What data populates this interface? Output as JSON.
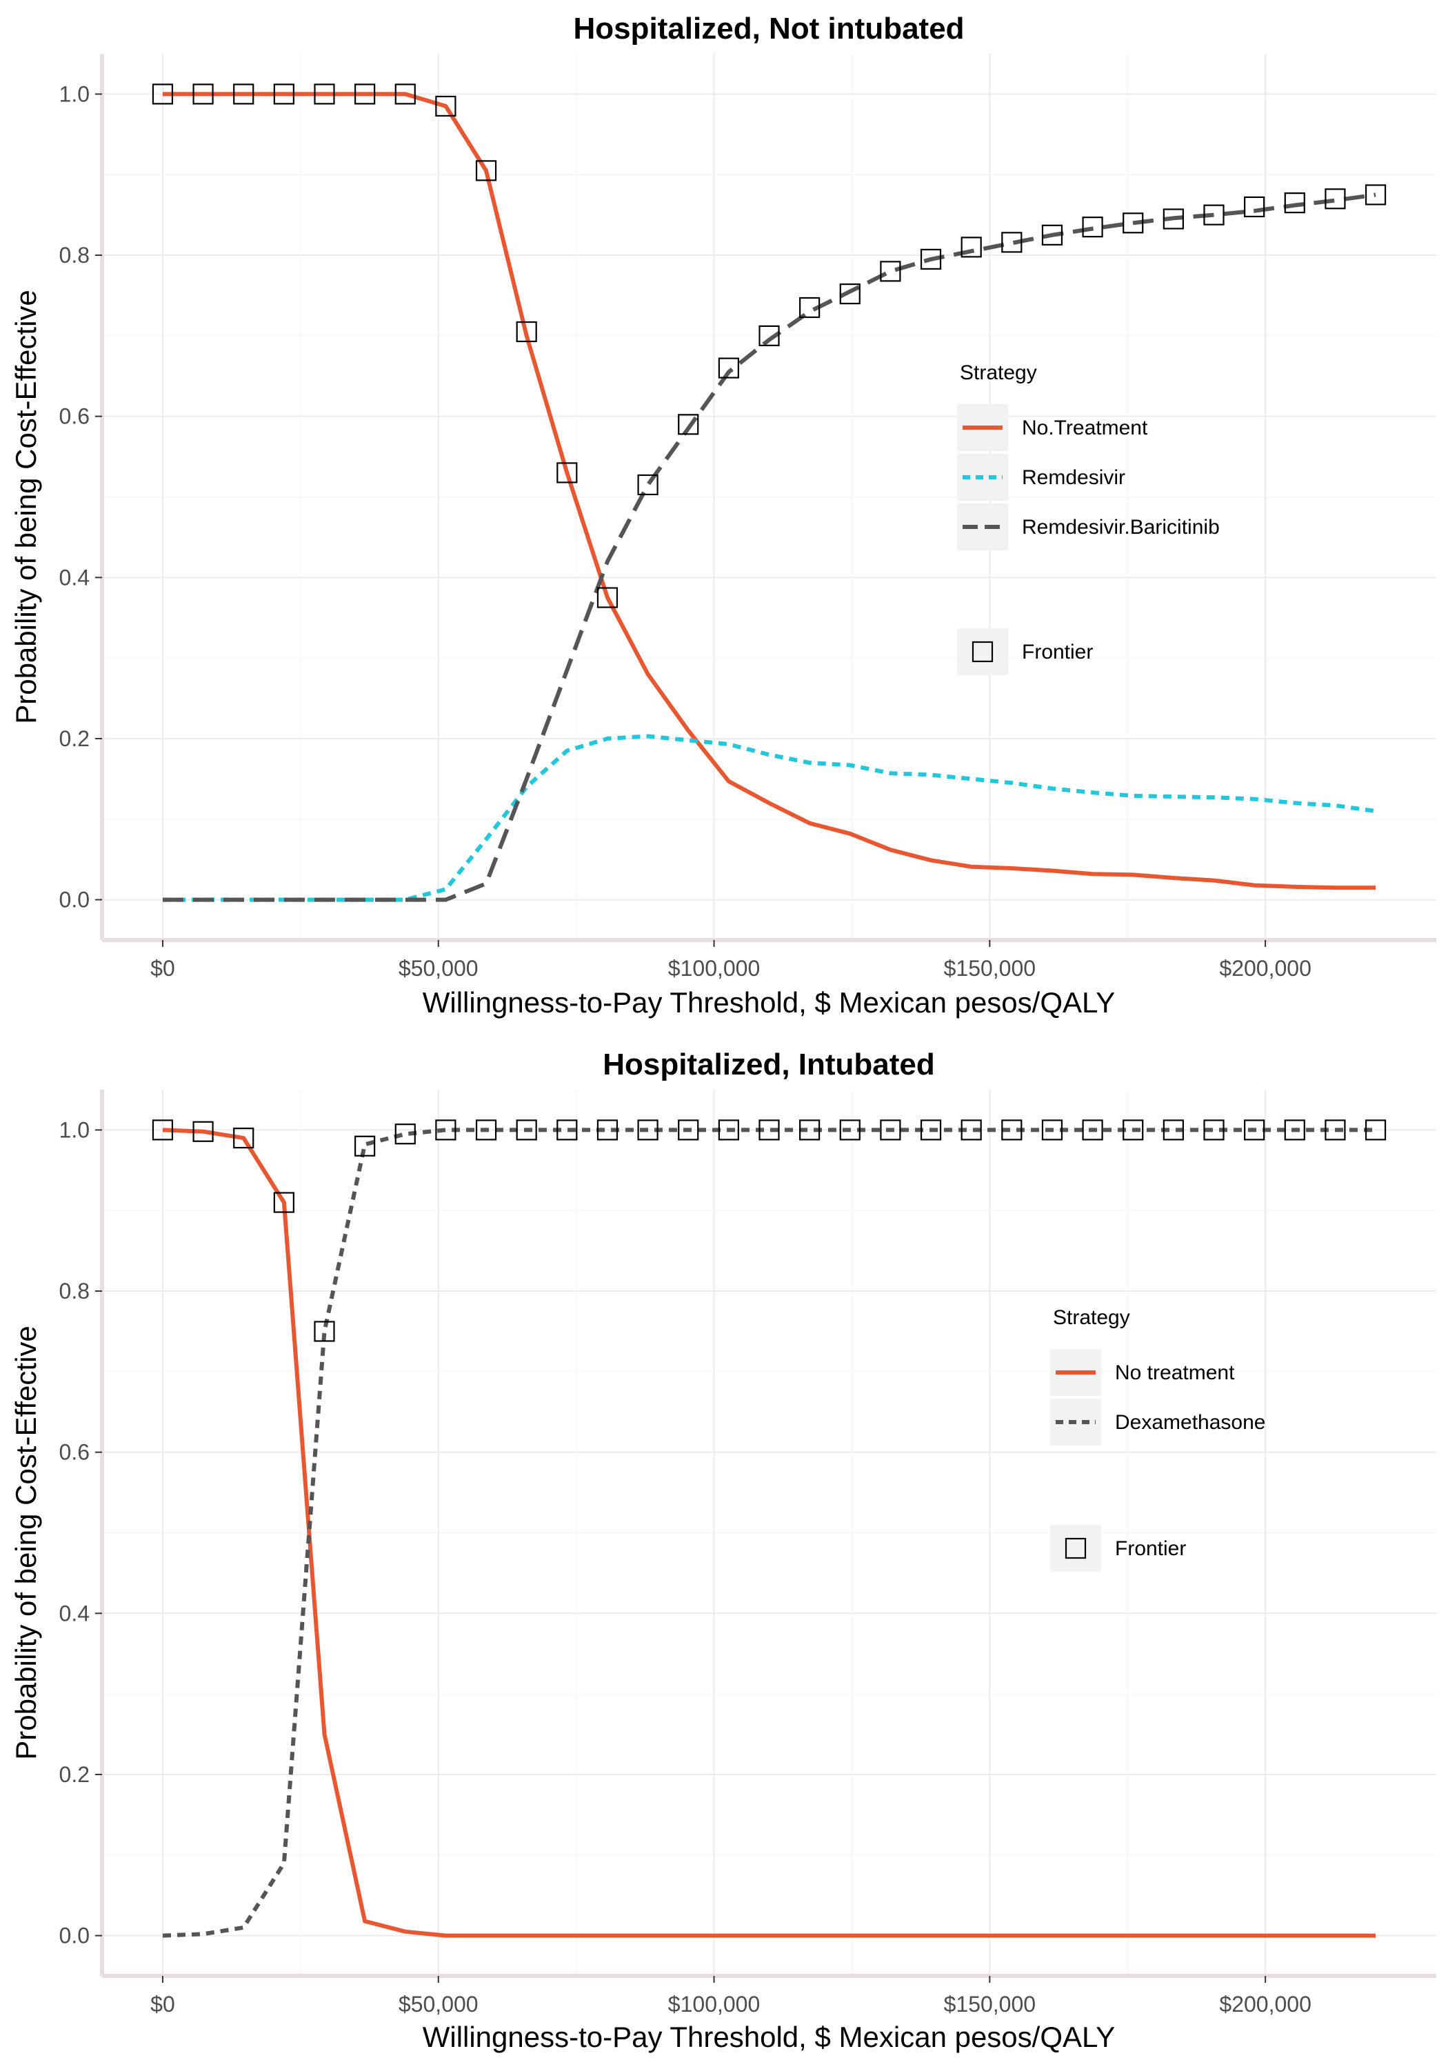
{
  "chart_data": [
    {
      "type": "line",
      "title": "Hospitalized, Not intubated",
      "xlabel": "Willingness-to-Pay Threshold, $ Mexican pesos/QALY",
      "ylabel": "Probability of being Cost-Effective",
      "xlim": [
        -11000,
        231000
      ],
      "ylim": [
        -0.05,
        1.05
      ],
      "x_ticks": [
        0,
        50000,
        100000,
        150000,
        200000
      ],
      "x_tick_labels": [
        "$0",
        "$50,000",
        "$100,000",
        "$150,000",
        "$200,000"
      ],
      "y_ticks": [
        0,
        0.2,
        0.4,
        0.6,
        0.8,
        1.0
      ],
      "y_tick_labels": [
        "0.0",
        "0.2",
        "0.4",
        "0.6",
        "0.8",
        "1.0"
      ],
      "grid": true,
      "legend_title": "Strategy",
      "legend_position": "right",
      "frontier_label": "Frontier",
      "series": [
        {
          "name": "No.Treatment",
          "color": "#e8572f",
          "dash": "solid",
          "points": [
            [
              0,
              1.0
            ],
            [
              7333,
              1.0
            ],
            [
              14667,
              1.0
            ],
            [
              22000,
              1.0
            ],
            [
              29333,
              1.0
            ],
            [
              36667,
              1.0
            ],
            [
              44000,
              1.0
            ],
            [
              51333,
              0.985
            ],
            [
              58667,
              0.905
            ],
            [
              66000,
              0.7
            ],
            [
              73333,
              0.53
            ],
            [
              80667,
              0.375
            ],
            [
              88000,
              0.28
            ],
            [
              95333,
              0.21
            ],
            [
              102667,
              0.147
            ],
            [
              110000,
              0.12
            ],
            [
              117333,
              0.095
            ],
            [
              124667,
              0.082
            ],
            [
              132000,
              0.062
            ],
            [
              139333,
              0.049
            ],
            [
              146667,
              0.041
            ],
            [
              154000,
              0.039
            ],
            [
              161333,
              0.036
            ],
            [
              168667,
              0.032
            ],
            [
              176000,
              0.031
            ],
            [
              183333,
              0.027
            ],
            [
              190667,
              0.024
            ],
            [
              198000,
              0.018
            ],
            [
              205333,
              0.016
            ],
            [
              212667,
              0.015
            ],
            [
              220000,
              0.015
            ]
          ]
        },
        {
          "name": "Remdesivir",
          "color": "#22c7dd",
          "dash": "short",
          "points": [
            [
              0,
              0.0
            ],
            [
              7333,
              0.0
            ],
            [
              14667,
              0.0
            ],
            [
              22000,
              0.0
            ],
            [
              29333,
              0.0
            ],
            [
              36667,
              0.0
            ],
            [
              44000,
              0.0
            ],
            [
              51333,
              0.013
            ],
            [
              58667,
              0.075
            ],
            [
              66000,
              0.14
            ],
            [
              73333,
              0.185
            ],
            [
              80667,
              0.2
            ],
            [
              88000,
              0.203
            ],
            [
              95333,
              0.198
            ],
            [
              102667,
              0.193
            ],
            [
              110000,
              0.18
            ],
            [
              117333,
              0.17
            ],
            [
              124667,
              0.167
            ],
            [
              132000,
              0.157
            ],
            [
              139333,
              0.155
            ],
            [
              146667,
              0.15
            ],
            [
              154000,
              0.145
            ],
            [
              161333,
              0.138
            ],
            [
              168667,
              0.133
            ],
            [
              176000,
              0.129
            ],
            [
              183333,
              0.128
            ],
            [
              190667,
              0.127
            ],
            [
              198000,
              0.125
            ],
            [
              205333,
              0.12
            ],
            [
              212667,
              0.117
            ],
            [
              220000,
              0.11
            ]
          ]
        },
        {
          "name": "Remdesivir.Baricitinib",
          "color": "#555555",
          "dash": "long",
          "points": [
            [
              0,
              0.0
            ],
            [
              7333,
              0.0
            ],
            [
              14667,
              0.0
            ],
            [
              22000,
              0.0
            ],
            [
              29333,
              0.0
            ],
            [
              36667,
              0.0
            ],
            [
              44000,
              0.0
            ],
            [
              51333,
              0.0
            ],
            [
              58667,
              0.02
            ],
            [
              66000,
              0.15
            ],
            [
              73333,
              0.285
            ],
            [
              80667,
              0.42
            ],
            [
              88000,
              0.515
            ],
            [
              95333,
              0.585
            ],
            [
              102667,
              0.655
            ],
            [
              110000,
              0.695
            ],
            [
              117333,
              0.73
            ],
            [
              124667,
              0.755
            ],
            [
              132000,
              0.78
            ],
            [
              139333,
              0.795
            ],
            [
              146667,
              0.805
            ],
            [
              154000,
              0.815
            ],
            [
              161333,
              0.825
            ],
            [
              168667,
              0.833
            ],
            [
              176000,
              0.84
            ],
            [
              183333,
              0.846
            ],
            [
              190667,
              0.85
            ],
            [
              198000,
              0.855
            ],
            [
              205333,
              0.862
            ],
            [
              212667,
              0.868
            ],
            [
              220000,
              0.875
            ]
          ]
        }
      ],
      "frontier": [
        [
          0,
          1.0
        ],
        [
          7333,
          1.0
        ],
        [
          14667,
          1.0
        ],
        [
          22000,
          1.0
        ],
        [
          29333,
          1.0
        ],
        [
          36667,
          1.0
        ],
        [
          44000,
          1.0
        ],
        [
          51333,
          0.985
        ],
        [
          58667,
          0.905
        ],
        [
          66000,
          0.705
        ],
        [
          73333,
          0.53
        ],
        [
          80667,
          0.375
        ],
        [
          88000,
          0.515
        ],
        [
          95333,
          0.59
        ],
        [
          102667,
          0.66
        ],
        [
          110000,
          0.7
        ],
        [
          117333,
          0.735
        ],
        [
          124667,
          0.752
        ],
        [
          132000,
          0.78
        ],
        [
          139333,
          0.795
        ],
        [
          146667,
          0.81
        ],
        [
          154000,
          0.816
        ],
        [
          161333,
          0.825
        ],
        [
          168667,
          0.835
        ],
        [
          176000,
          0.84
        ],
        [
          183333,
          0.845
        ],
        [
          190667,
          0.85
        ],
        [
          198000,
          0.86
        ],
        [
          205333,
          0.865
        ],
        [
          212667,
          0.87
        ],
        [
          220000,
          0.875
        ]
      ]
    },
    {
      "type": "line",
      "title": "Hospitalized, Intubated",
      "xlabel": "Willingness-to-Pay Threshold, $ Mexican pesos/QALY",
      "ylabel": "Probability of being Cost-Effective",
      "xlim": [
        -11000,
        231000
      ],
      "ylim": [
        -0.05,
        1.05
      ],
      "x_ticks": [
        0,
        50000,
        100000,
        150000,
        200000
      ],
      "x_tick_labels": [
        "$0",
        "$50,000",
        "$100,000",
        "$150,000",
        "$200,000"
      ],
      "y_ticks": [
        0,
        0.2,
        0.4,
        0.6,
        0.8,
        1.0
      ],
      "y_tick_labels": [
        "0.0",
        "0.2",
        "0.4",
        "0.6",
        "0.8",
        "1.0"
      ],
      "grid": true,
      "legend_title": "Strategy",
      "legend_position": "right",
      "frontier_label": "Frontier",
      "series": [
        {
          "name": "No treatment",
          "color": "#e8572f",
          "dash": "solid",
          "points": [
            [
              0,
              1.0
            ],
            [
              7333,
              0.998
            ],
            [
              14667,
              0.99
            ],
            [
              22000,
              0.91
            ],
            [
              29333,
              0.25
            ],
            [
              36667,
              0.018
            ],
            [
              44000,
              0.005
            ],
            [
              51333,
              0.0
            ],
            [
              58667,
              0.0
            ],
            [
              66000,
              0.0
            ],
            [
              80667,
              0.0
            ],
            [
              110000,
              0.0
            ],
            [
              154000,
              0.0
            ],
            [
              198000,
              0.0
            ],
            [
              220000,
              0.0
            ]
          ]
        },
        {
          "name": "Dexamethasone",
          "color": "#555555",
          "dash": "short",
          "points": [
            [
              0,
              0.0
            ],
            [
              7333,
              0.002
            ],
            [
              14667,
              0.01
            ],
            [
              22000,
              0.09
            ],
            [
              29333,
              0.75
            ],
            [
              36667,
              0.982
            ],
            [
              44000,
              0.995
            ],
            [
              51333,
              1.0
            ],
            [
              58667,
              1.0
            ],
            [
              66000,
              1.0
            ],
            [
              80667,
              1.0
            ],
            [
              110000,
              1.0
            ],
            [
              154000,
              1.0
            ],
            [
              198000,
              1.0
            ],
            [
              220000,
              1.0
            ]
          ]
        }
      ],
      "frontier": [
        [
          0,
          1.0
        ],
        [
          7333,
          0.998
        ],
        [
          14667,
          0.99
        ],
        [
          22000,
          0.91
        ],
        [
          29333,
          0.75
        ],
        [
          36667,
          0.98
        ],
        [
          44000,
          0.995
        ],
        [
          51333,
          1.0
        ],
        [
          58667,
          1.0
        ],
        [
          66000,
          1.0
        ],
        [
          73333,
          1.0
        ],
        [
          80667,
          1.0
        ],
        [
          88000,
          1.0
        ],
        [
          95333,
          1.0
        ],
        [
          102667,
          1.0
        ],
        [
          110000,
          1.0
        ],
        [
          117333,
          1.0
        ],
        [
          124667,
          1.0
        ],
        [
          132000,
          1.0
        ],
        [
          139333,
          1.0
        ],
        [
          146667,
          1.0
        ],
        [
          154000,
          1.0
        ],
        [
          161333,
          1.0
        ],
        [
          168667,
          1.0
        ],
        [
          176000,
          1.0
        ],
        [
          183333,
          1.0
        ],
        [
          190667,
          1.0
        ],
        [
          198000,
          1.0
        ],
        [
          205333,
          1.0
        ],
        [
          212667,
          1.0
        ],
        [
          220000,
          1.0
        ]
      ]
    }
  ]
}
